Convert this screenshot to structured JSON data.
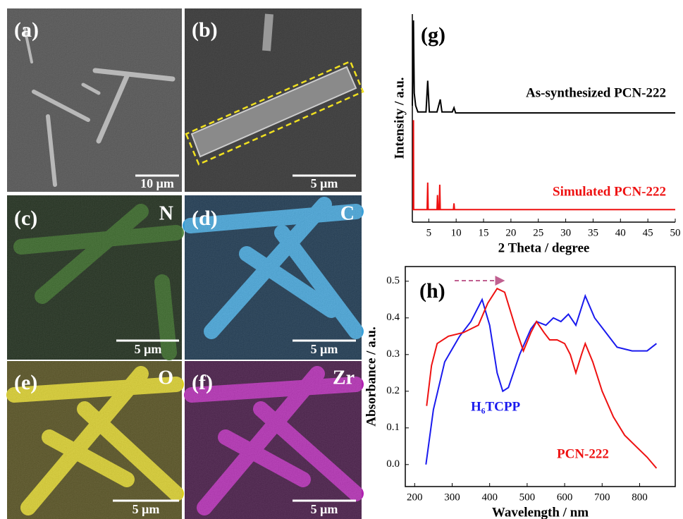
{
  "panels": [
    {
      "label": "(a)",
      "scale_bar": "10 μm"
    },
    {
      "label": "(b)",
      "scale_bar": "5 μm"
    },
    {
      "label": "(c)",
      "element": "N",
      "scale_bar": "5 μm"
    },
    {
      "label": "(d)",
      "element": "C",
      "scale_bar": "5 μm"
    },
    {
      "label": "(e)",
      "element": "O",
      "scale_bar": "5 μm"
    },
    {
      "label": "(f)",
      "element": "Zr",
      "scale_bar": "5 μm"
    }
  ],
  "chart_data": [
    {
      "type": "line",
      "panel_label": "(g)",
      "xlabel": "2 Theta / degree",
      "ylabel": "Intensity / a.u.",
      "xlim": [
        2,
        50
      ],
      "ylim": [
        0,
        1
      ],
      "xticks": [
        5,
        10,
        15,
        20,
        25,
        30,
        35,
        40,
        45,
        50
      ],
      "series": [
        {
          "name": "As-synthesized PCN-222",
          "color": "#000000",
          "x": [
            2,
            2.1,
            2.2,
            2.35,
            2.6,
            3.0,
            4.5,
            4.8,
            5.1,
            6.5,
            7.1,
            7.4,
            9.3,
            9.6,
            9.9,
            12,
            50
          ],
          "values": [
            0.56,
            0.75,
            0.97,
            0.62,
            0.56,
            0.53,
            0.53,
            0.68,
            0.53,
            0.53,
            0.59,
            0.53,
            0.53,
            0.55,
            0.525,
            0.525,
            0.525
          ]
        },
        {
          "name": "Simulated PCN-222",
          "color": "#ee1111",
          "x": [
            2,
            2.15,
            2.2,
            2.25,
            4.7,
            4.8,
            4.9,
            6.5,
            6.6,
            6.7,
            6.9,
            7.0,
            7.1,
            9.5,
            9.6,
            9.7,
            50
          ],
          "values": [
            0.06,
            0.06,
            0.49,
            0.06,
            0.06,
            0.19,
            0.06,
            0.06,
            0.13,
            0.06,
            0.06,
            0.18,
            0.06,
            0.06,
            0.09,
            0.06,
            0.06
          ]
        }
      ]
    },
    {
      "type": "line",
      "panel_label": "(h)",
      "xlabel": "Wavelength / nm",
      "ylabel": "Absorbance / a.u.",
      "xlim": [
        175,
        895
      ],
      "ylim": [
        -0.06,
        0.54
      ],
      "xticks": [
        200,
        300,
        400,
        500,
        600,
        700,
        800
      ],
      "yticks": [
        {
          "value": 0,
          "label": "0.0"
        },
        0.1,
        0.2,
        0.3,
        0.4,
        0.5
      ],
      "series": [
        {
          "name": "H₆TCPP",
          "color": "#1a1aee",
          "x": [
            230,
            250,
            280,
            320,
            350,
            380,
            400,
            420,
            435,
            450,
            480,
            510,
            525,
            550,
            570,
            590,
            610,
            630,
            655,
            680,
            710,
            740,
            780,
            820,
            845
          ],
          "values": [
            0.0,
            0.15,
            0.28,
            0.35,
            0.39,
            0.45,
            0.38,
            0.25,
            0.2,
            0.21,
            0.3,
            0.37,
            0.39,
            0.38,
            0.4,
            0.39,
            0.41,
            0.38,
            0.46,
            0.4,
            0.36,
            0.32,
            0.31,
            0.31,
            0.33
          ]
        },
        {
          "name": "PCN-222",
          "color": "#ee1111",
          "x": [
            232,
            245,
            260,
            290,
            330,
            370,
            395,
            420,
            440,
            470,
            490,
            510,
            525,
            545,
            560,
            580,
            600,
            615,
            630,
            645,
            655,
            675,
            700,
            730,
            760,
            790,
            820,
            845
          ],
          "values": [
            0.16,
            0.27,
            0.33,
            0.35,
            0.36,
            0.38,
            0.44,
            0.48,
            0.47,
            0.37,
            0.31,
            0.36,
            0.39,
            0.36,
            0.34,
            0.34,
            0.33,
            0.3,
            0.25,
            0.3,
            0.33,
            0.28,
            0.2,
            0.13,
            0.08,
            0.05,
            0.02,
            -0.01
          ]
        }
      ]
    }
  ]
}
